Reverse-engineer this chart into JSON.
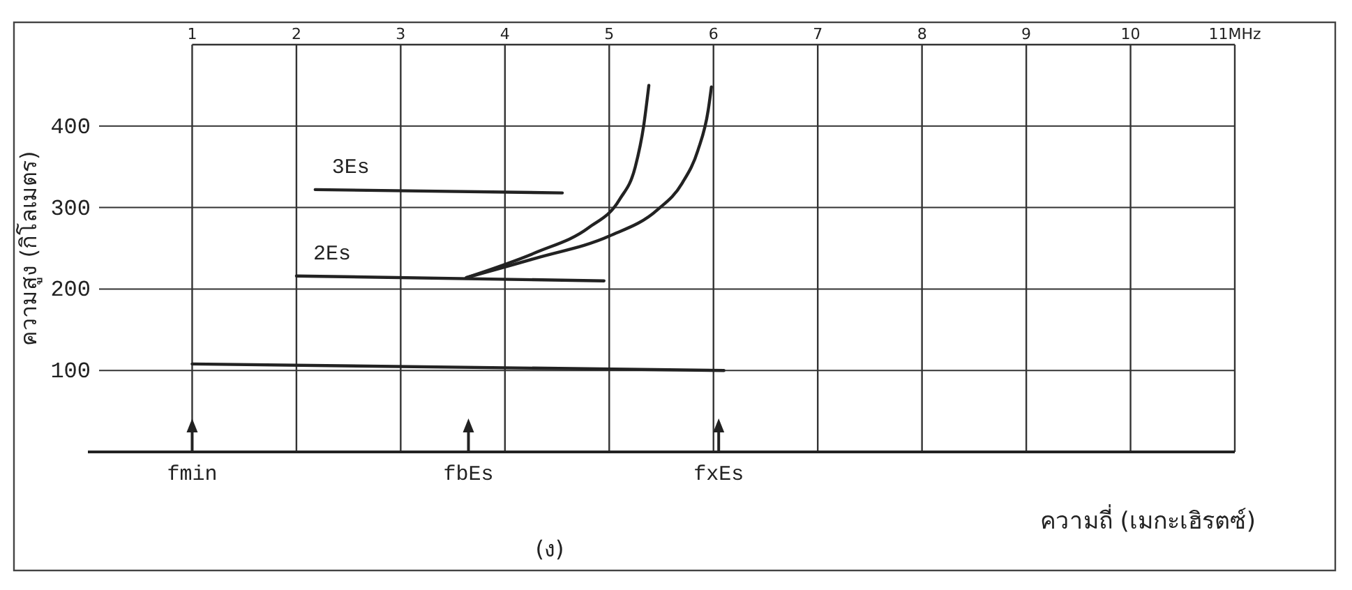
{
  "chart_data": {
    "type": "line",
    "xlabel": "ความถี่ (เมกะเฮิรตซ์)",
    "ylabel": "ความสูง (กิโลเมตร)",
    "xlim": [
      0,
      11
    ],
    "ylim": [
      0,
      500
    ],
    "xticks": [
      1,
      2,
      3,
      4,
      5,
      6,
      7,
      8,
      9,
      10,
      {
        "value": 11,
        "label": "11MHz"
      }
    ],
    "yticks": [
      100,
      200,
      300,
      400
    ],
    "grid": true,
    "line_style": "solid",
    "marker": "none",
    "series": [
      {
        "color": "#222222",
        "x": [
          1.0,
          6.1
        ],
        "values": [
          108,
          100
        ]
      },
      {
        "name": "2Es",
        "color": "#222222",
        "x": [
          2.0,
          4.95
        ],
        "values": [
          216,
          210
        ]
      },
      {
        "name": "3Es",
        "color": "#222222",
        "x": [
          2.18,
          4.55
        ],
        "values": [
          322,
          318
        ]
      },
      {
        "color": "#222222",
        "x": [
          3.63,
          4.3,
          4.8,
          5.1,
          5.25,
          5.33,
          5.38
        ],
        "values": [
          214,
          245,
          275,
          310,
          350,
          400,
          450
        ]
      },
      {
        "color": "#222222",
        "x": [
          3.63,
          4.3,
          5.0,
          5.46,
          5.7,
          5.85,
          5.95,
          5.98
        ],
        "values": [
          214,
          238,
          265,
          297,
          330,
          370,
          420,
          448
        ]
      }
    ],
    "ref_lines": [
      {
        "axis": "x",
        "value": 1,
        "label": "fmin"
      },
      {
        "axis": "x",
        "value": 3.65,
        "label": "fbEs"
      },
      {
        "axis": "x",
        "value": 6.05,
        "label": "fxEs"
      }
    ],
    "annotations": [
      "(ง)"
    ]
  }
}
